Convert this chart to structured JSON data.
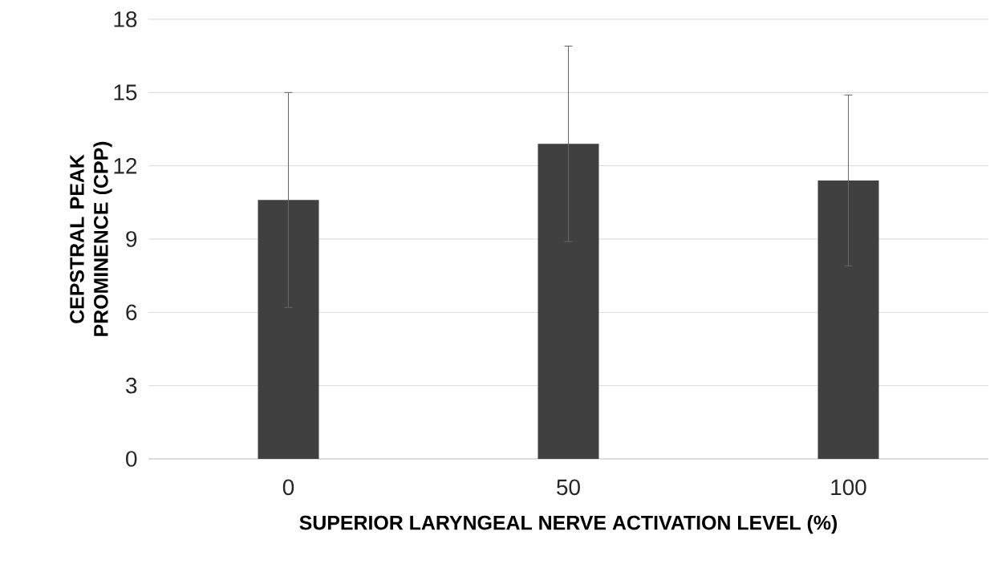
{
  "chart_data": {
    "type": "bar",
    "xlabel": "SUPERIOR LARYNGEAL NERVE ACTIVATION LEVEL (%)",
    "ylabel": "CEPSTRAL PEAK PROMINENCE (CPP)",
    "categories": [
      "0",
      "50",
      "100"
    ],
    "values": [
      10.6,
      12.9,
      11.4
    ],
    "errors": [
      4.4,
      4.0,
      3.5
    ],
    "color": "#404040",
    "ylim": [
      0,
      18
    ],
    "yticks": [
      0,
      3,
      6,
      9,
      12,
      15,
      18
    ],
    "grid": "y"
  }
}
